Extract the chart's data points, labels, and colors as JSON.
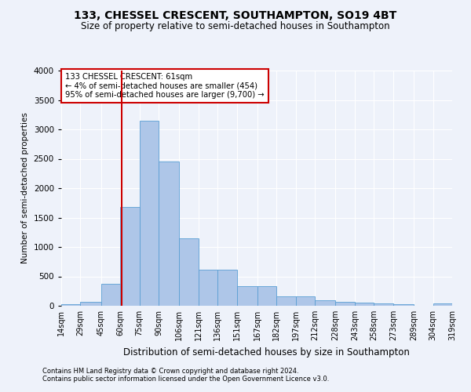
{
  "title": "133, CHESSEL CRESCENT, SOUTHAMPTON, SO19 4BT",
  "subtitle": "Size of property relative to semi-detached houses in Southampton",
  "xlabel": "Distribution of semi-detached houses by size in Southampton",
  "ylabel": "Number of semi-detached properties",
  "footnote1": "Contains HM Land Registry data © Crown copyright and database right 2024.",
  "footnote2": "Contains public sector information licensed under the Open Government Licence v3.0.",
  "annotation_line1": "133 CHESSEL CRESCENT: 61sqm",
  "annotation_line2": "← 4% of semi-detached houses are smaller (454)",
  "annotation_line3": "95% of semi-detached houses are larger (9,700) →",
  "property_size": 61,
  "bar_color": "#aec6e8",
  "bar_edge_color": "#5a9fd4",
  "vline_color": "#cc0000",
  "annotation_box_color": "#cc0000",
  "background_color": "#eef2fa",
  "grid_color": "#ffffff",
  "bin_edges": [
    14,
    29,
    45,
    60,
    75,
    90,
    106,
    121,
    136,
    151,
    167,
    182,
    197,
    212,
    228,
    243,
    258,
    273,
    289,
    304,
    319
  ],
  "bin_values": [
    30,
    70,
    380,
    1680,
    3150,
    2450,
    1150,
    620,
    620,
    330,
    330,
    160,
    160,
    100,
    70,
    55,
    40,
    25,
    5,
    35
  ],
  "ylim": [
    0,
    4000
  ],
  "yticks": [
    0,
    500,
    1000,
    1500,
    2000,
    2500,
    3000,
    3500,
    4000
  ]
}
